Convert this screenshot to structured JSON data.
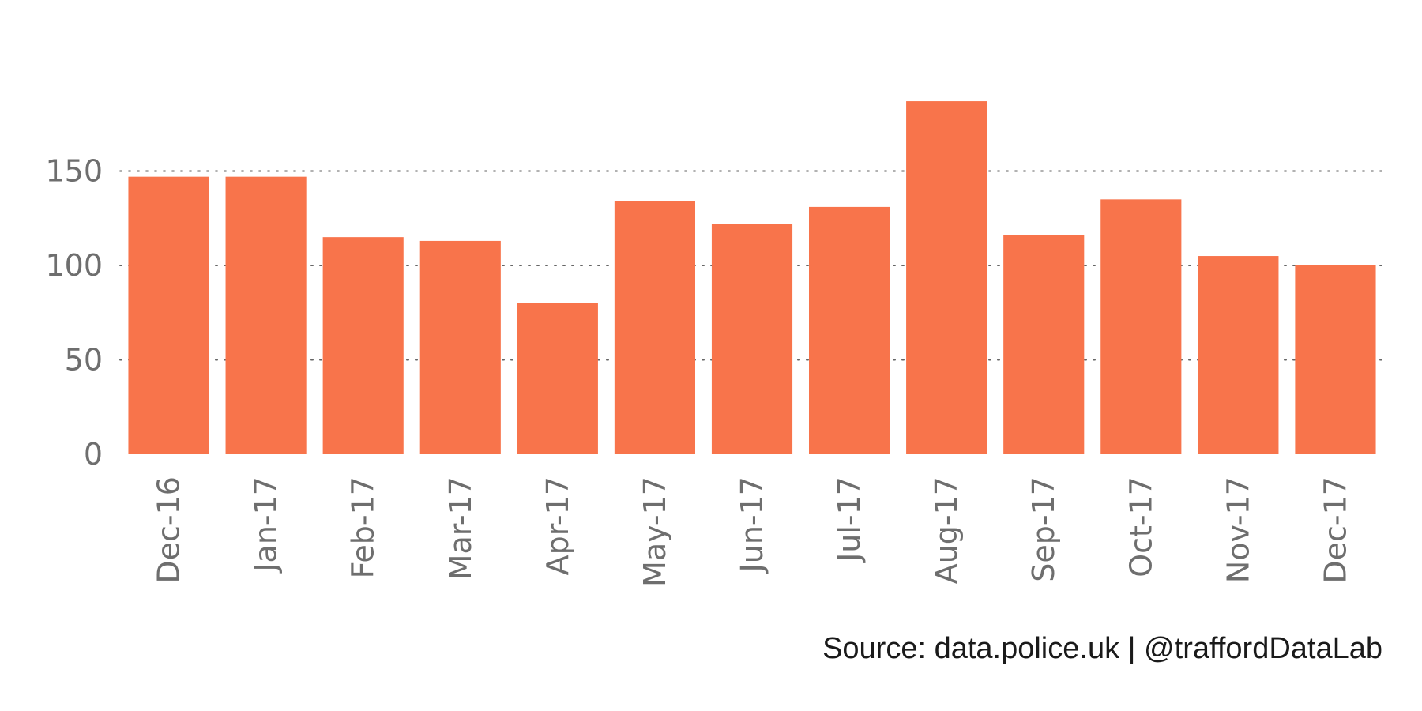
{
  "chart_data": {
    "type": "bar",
    "title": "",
    "xlabel": "",
    "ylabel": "",
    "categories": [
      "Dec-16",
      "Jan-17",
      "Feb-17",
      "Mar-17",
      "Apr-17",
      "May-17",
      "Jun-17",
      "Jul-17",
      "Aug-17",
      "Sep-17",
      "Oct-17",
      "Nov-17",
      "Dec-17"
    ],
    "values": [
      147,
      147,
      115,
      113,
      80,
      134,
      122,
      131,
      187,
      116,
      135,
      105,
      100
    ],
    "ylim": [
      0,
      200
    ],
    "yticks": [
      0,
      50,
      100,
      150
    ],
    "grid": "horizontal-dotted",
    "bar_color": "#f8744b",
    "tick_color": "#6e6e6e",
    "grid_color": "#666666"
  },
  "caption": "Source: data.police.uk  |  @traffordDataLab"
}
